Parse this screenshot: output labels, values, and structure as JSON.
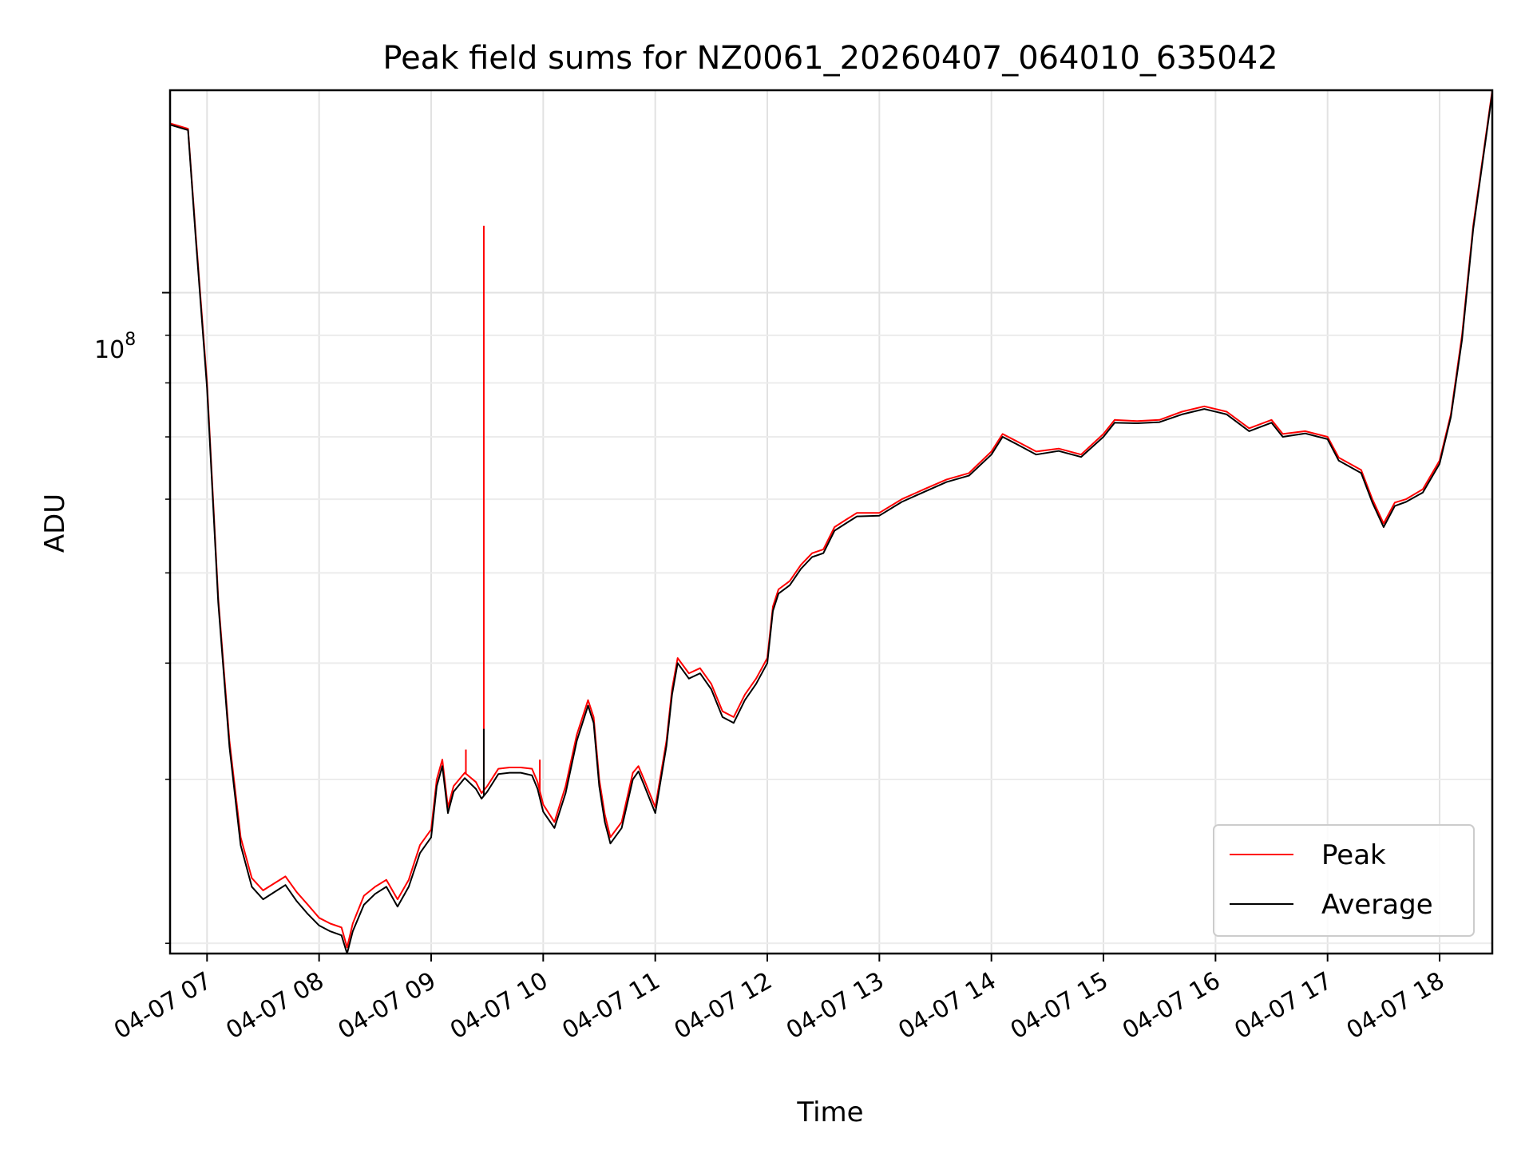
{
  "chart_data": {
    "type": "line",
    "title": "Peak field sums for NZ0061_20260407_064010_635042",
    "xlabel": "Time",
    "ylabel": "ADU",
    "yscale": "log",
    "ylim": [
      19500000,
      165000000
    ],
    "xlim_hours": [
      6.67,
      18.47
    ],
    "grid": true,
    "legend_location": "lower right",
    "y_major_tick_label": "10",
    "y_major_tick_exponent": "8",
    "x_ticks": [
      {
        "hour": 7,
        "label": "04-07 07"
      },
      {
        "hour": 8,
        "label": "04-07 08"
      },
      {
        "hour": 9,
        "label": "04-07 09"
      },
      {
        "hour": 10,
        "label": "04-07 10"
      },
      {
        "hour": 11,
        "label": "04-07 11"
      },
      {
        "hour": 12,
        "label": "04-07 12"
      },
      {
        "hour": 13,
        "label": "04-07 13"
      },
      {
        "hour": 14,
        "label": "04-07 14"
      },
      {
        "hour": 15,
        "label": "04-07 15"
      },
      {
        "hour": 16,
        "label": "04-07 16"
      },
      {
        "hour": 17,
        "label": "04-07 17"
      },
      {
        "hour": 18,
        "label": "04-07 18"
      }
    ],
    "y_minor_ticks": [
      20000000,
      30000000,
      40000000,
      50000000,
      60000000,
      70000000,
      80000000,
      90000000
    ],
    "series": [
      {
        "name": "Peak",
        "color": "#ff0000",
        "points": [
          [
            6.67,
            152000000
          ],
          [
            6.83,
            150000000
          ],
          [
            6.9,
            115000000
          ],
          [
            7.0,
            80000000
          ],
          [
            7.1,
            47000000
          ],
          [
            7.2,
            33000000
          ],
          [
            7.3,
            26000000
          ],
          [
            7.4,
            23500000
          ],
          [
            7.5,
            22800000
          ],
          [
            7.6,
            23200000
          ],
          [
            7.7,
            23600000
          ],
          [
            7.8,
            22700000
          ],
          [
            7.9,
            22000000
          ],
          [
            8.0,
            21300000
          ],
          [
            8.1,
            21000000
          ],
          [
            8.2,
            20800000
          ],
          [
            8.25,
            19800000
          ],
          [
            8.3,
            21000000
          ],
          [
            8.4,
            22500000
          ],
          [
            8.5,
            23000000
          ],
          [
            8.6,
            23400000
          ],
          [
            8.7,
            22300000
          ],
          [
            8.8,
            23400000
          ],
          [
            8.9,
            25500000
          ],
          [
            9.0,
            26500000
          ],
          [
            9.05,
            30000000
          ],
          [
            9.1,
            31500000
          ],
          [
            9.15,
            28000000
          ],
          [
            9.2,
            29500000
          ],
          [
            9.3,
            30500000
          ],
          [
            9.4,
            29800000
          ],
          [
            9.45,
            29000000
          ],
          [
            9.5,
            29500000
          ],
          [
            9.6,
            30800000
          ],
          [
            9.7,
            30900000
          ],
          [
            9.8,
            30900000
          ],
          [
            9.9,
            30800000
          ],
          [
            9.95,
            29800000
          ],
          [
            10.0,
            28200000
          ],
          [
            10.1,
            27000000
          ],
          [
            10.2,
            29500000
          ],
          [
            10.3,
            33500000
          ],
          [
            10.4,
            36500000
          ],
          [
            10.45,
            35000000
          ],
          [
            10.5,
            30000000
          ],
          [
            10.55,
            27500000
          ],
          [
            10.6,
            26000000
          ],
          [
            10.7,
            27000000
          ],
          [
            10.8,
            30500000
          ],
          [
            10.85,
            31000000
          ],
          [
            10.9,
            30000000
          ],
          [
            11.0,
            28000000
          ],
          [
            11.1,
            33000000
          ],
          [
            11.15,
            37500000
          ],
          [
            11.2,
            40500000
          ],
          [
            11.3,
            39000000
          ],
          [
            11.4,
            39500000
          ],
          [
            11.5,
            38000000
          ],
          [
            11.6,
            35500000
          ],
          [
            11.7,
            35000000
          ],
          [
            11.8,
            37000000
          ],
          [
            11.9,
            38500000
          ],
          [
            12.0,
            40500000
          ],
          [
            12.05,
            46000000
          ],
          [
            12.1,
            48000000
          ],
          [
            12.2,
            49000000
          ],
          [
            12.3,
            51000000
          ],
          [
            12.4,
            52500000
          ],
          [
            12.5,
            53000000
          ],
          [
            12.6,
            56000000
          ],
          [
            12.7,
            57000000
          ],
          [
            12.8,
            58000000
          ],
          [
            13.0,
            58000000
          ],
          [
            13.2,
            60000000
          ],
          [
            13.4,
            61500000
          ],
          [
            13.6,
            63000000
          ],
          [
            13.8,
            64000000
          ],
          [
            14.0,
            67500000
          ],
          [
            14.1,
            70500000
          ],
          [
            14.2,
            69500000
          ],
          [
            14.4,
            67500000
          ],
          [
            14.6,
            68000000
          ],
          [
            14.8,
            67000000
          ],
          [
            15.0,
            70500000
          ],
          [
            15.1,
            73000000
          ],
          [
            15.3,
            72800000
          ],
          [
            15.5,
            73000000
          ],
          [
            15.7,
            74500000
          ],
          [
            15.9,
            75500000
          ],
          [
            16.1,
            74500000
          ],
          [
            16.3,
            71500000
          ],
          [
            16.5,
            73000000
          ],
          [
            16.6,
            70500000
          ],
          [
            16.8,
            71000000
          ],
          [
            17.0,
            70000000
          ],
          [
            17.1,
            66500000
          ],
          [
            17.3,
            64500000
          ],
          [
            17.4,
            60000000
          ],
          [
            17.5,
            56500000
          ],
          [
            17.6,
            59500000
          ],
          [
            17.7,
            60000000
          ],
          [
            17.85,
            61500000
          ],
          [
            18.0,
            66000000
          ],
          [
            18.1,
            74000000
          ],
          [
            18.2,
            90000000
          ],
          [
            18.3,
            118000000
          ],
          [
            18.47,
            165000000
          ]
        ],
        "spikes": [
          {
            "hour": 9.31,
            "value": 32300000
          },
          {
            "hour": 9.47,
            "value": 118000000
          },
          {
            "hour": 9.97,
            "value": 31500000
          }
        ]
      },
      {
        "name": "Average",
        "color": "#000000",
        "points": [
          [
            6.67,
            151500000
          ],
          [
            6.83,
            149500000
          ],
          [
            6.9,
            114000000
          ],
          [
            7.0,
            79000000
          ],
          [
            7.1,
            46500000
          ],
          [
            7.2,
            32500000
          ],
          [
            7.3,
            25500000
          ],
          [
            7.4,
            23000000
          ],
          [
            7.5,
            22300000
          ],
          [
            7.6,
            22700000
          ],
          [
            7.7,
            23100000
          ],
          [
            7.8,
            22200000
          ],
          [
            7.9,
            21500000
          ],
          [
            8.0,
            20900000
          ],
          [
            8.1,
            20600000
          ],
          [
            8.2,
            20400000
          ],
          [
            8.25,
            19500000
          ],
          [
            8.3,
            20600000
          ],
          [
            8.4,
            22000000
          ],
          [
            8.5,
            22600000
          ],
          [
            8.6,
            23000000
          ],
          [
            8.7,
            21900000
          ],
          [
            8.8,
            23000000
          ],
          [
            8.9,
            25000000
          ],
          [
            9.0,
            26000000
          ],
          [
            9.05,
            29500000
          ],
          [
            9.1,
            31000000
          ],
          [
            9.15,
            27600000
          ],
          [
            9.2,
            29100000
          ],
          [
            9.3,
            30100000
          ],
          [
            9.4,
            29300000
          ],
          [
            9.45,
            28600000
          ],
          [
            9.5,
            29100000
          ],
          [
            9.6,
            30400000
          ],
          [
            9.7,
            30500000
          ],
          [
            9.8,
            30500000
          ],
          [
            9.9,
            30300000
          ],
          [
            9.95,
            29300000
          ],
          [
            10.0,
            27700000
          ],
          [
            10.1,
            26600000
          ],
          [
            10.2,
            29000000
          ],
          [
            10.3,
            33000000
          ],
          [
            10.4,
            36000000
          ],
          [
            10.45,
            34500000
          ],
          [
            10.5,
            29500000
          ],
          [
            10.55,
            27000000
          ],
          [
            10.6,
            25600000
          ],
          [
            10.7,
            26600000
          ],
          [
            10.8,
            30000000
          ],
          [
            10.85,
            30600000
          ],
          [
            10.9,
            29600000
          ],
          [
            11.0,
            27600000
          ],
          [
            11.1,
            32600000
          ],
          [
            11.15,
            37000000
          ],
          [
            11.2,
            40000000
          ],
          [
            11.3,
            38500000
          ],
          [
            11.4,
            39000000
          ],
          [
            11.5,
            37500000
          ],
          [
            11.6,
            35000000
          ],
          [
            11.7,
            34500000
          ],
          [
            11.8,
            36500000
          ],
          [
            11.9,
            38000000
          ],
          [
            12.0,
            40000000
          ],
          [
            12.05,
            45500000
          ],
          [
            12.1,
            47500000
          ],
          [
            12.2,
            48500000
          ],
          [
            12.3,
            50500000
          ],
          [
            12.4,
            52000000
          ],
          [
            12.5,
            52500000
          ],
          [
            12.6,
            55500000
          ],
          [
            12.7,
            56500000
          ],
          [
            12.8,
            57500000
          ],
          [
            13.0,
            57600000
          ],
          [
            13.2,
            59600000
          ],
          [
            13.4,
            61100000
          ],
          [
            13.6,
            62600000
          ],
          [
            13.8,
            63600000
          ],
          [
            14.0,
            67000000
          ],
          [
            14.1,
            70000000
          ],
          [
            14.2,
            69000000
          ],
          [
            14.4,
            67000000
          ],
          [
            14.6,
            67600000
          ],
          [
            14.8,
            66600000
          ],
          [
            15.0,
            70000000
          ],
          [
            15.1,
            72500000
          ],
          [
            15.3,
            72400000
          ],
          [
            15.5,
            72600000
          ],
          [
            15.7,
            74000000
          ],
          [
            15.9,
            75000000
          ],
          [
            16.1,
            74000000
          ],
          [
            16.3,
            71000000
          ],
          [
            16.5,
            72500000
          ],
          [
            16.6,
            70000000
          ],
          [
            16.8,
            70600000
          ],
          [
            17.0,
            69600000
          ],
          [
            17.1,
            66000000
          ],
          [
            17.3,
            64000000
          ],
          [
            17.4,
            59500000
          ],
          [
            17.5,
            56000000
          ],
          [
            17.6,
            59000000
          ],
          [
            17.7,
            59600000
          ],
          [
            17.85,
            61000000
          ],
          [
            18.0,
            65500000
          ],
          [
            18.1,
            73500000
          ],
          [
            18.2,
            89000000
          ],
          [
            18.3,
            117000000
          ],
          [
            18.47,
            164000000
          ]
        ],
        "spikes": [
          {
            "hour": 9.47,
            "value": 34000000
          }
        ]
      }
    ]
  }
}
